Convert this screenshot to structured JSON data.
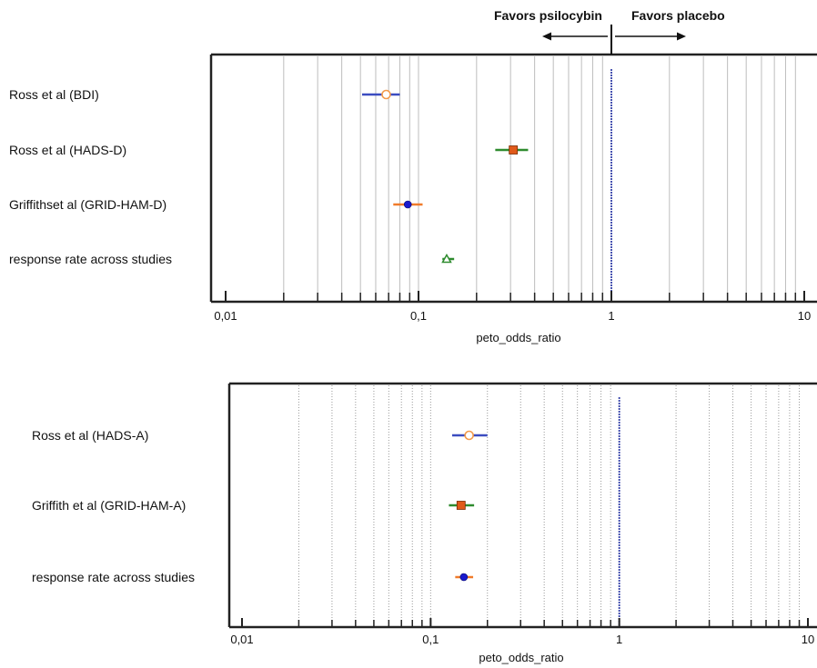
{
  "chart_data": [
    {
      "type": "forest",
      "xscale": "log",
      "xlim": [
        0.01,
        10
      ],
      "ticks": [
        {
          "value": 0.01,
          "label": "0,01"
        },
        {
          "value": 0.1,
          "label": "0,1"
        },
        {
          "value": 1,
          "label": "1"
        },
        {
          "value": 10,
          "label": "10"
        }
      ],
      "xlabel": "peto_odds_ratio",
      "reference_line": 1,
      "grid": "solid",
      "favor_left": "Favors psilocybin",
      "favor_right": "Favors placebo",
      "studies": [
        {
          "label": "Ross et al (BDI)",
          "estimate": 0.068,
          "ci": [
            0.051,
            0.08
          ],
          "marker": "open-circle",
          "ci_color": "#3b4cc0",
          "marker_color": "#f39a4a"
        },
        {
          "label": "Ross et al (HADS-D)",
          "estimate": 0.31,
          "ci": [
            0.25,
            0.37
          ],
          "marker": "square",
          "ci_color": "#2e8b2e",
          "marker_color": "#e05a1a"
        },
        {
          "label": "Griffithset al (GRID-HAM-D)",
          "estimate": 0.088,
          "ci": [
            0.074,
            0.105
          ],
          "marker": "filled-circle",
          "ci_color": "#f07b2a",
          "marker_color": "#1a1acc"
        },
        {
          "label": "response rate across studies",
          "estimate": 0.14,
          "ci": [
            0.133,
            0.153
          ],
          "marker": "open-triangle",
          "ci_color": "#2e8b2e",
          "marker_color": "#2e8b2e"
        }
      ]
    },
    {
      "type": "forest",
      "xscale": "log",
      "xlim": [
        0.01,
        10
      ],
      "ticks": [
        {
          "value": 0.01,
          "label": "0,01"
        },
        {
          "value": 0.1,
          "label": "0,1"
        },
        {
          "value": 1,
          "label": "1"
        },
        {
          "value": 10,
          "label": "10"
        }
      ],
      "xlabel": "peto_odds_ratio",
      "reference_line": 1,
      "grid": "dotted",
      "studies": [
        {
          "label": "Ross et al (HADS-A)",
          "estimate": 0.16,
          "ci": [
            0.13,
            0.2
          ],
          "marker": "open-circle",
          "ci_color": "#3b4cc0",
          "marker_color": "#f39a4a"
        },
        {
          "label": "Griffith et al (GRID-HAM-A)",
          "estimate": 0.145,
          "ci": [
            0.125,
            0.17
          ],
          "marker": "square",
          "ci_color": "#2e8b2e",
          "marker_color": "#e05a1a"
        },
        {
          "label": "response rate across studies",
          "estimate": 0.15,
          "ci": [
            0.135,
            0.168
          ],
          "marker": "filled-circle",
          "ci_color": "#f07b2a",
          "marker_color": "#1a1acc"
        }
      ]
    }
  ]
}
